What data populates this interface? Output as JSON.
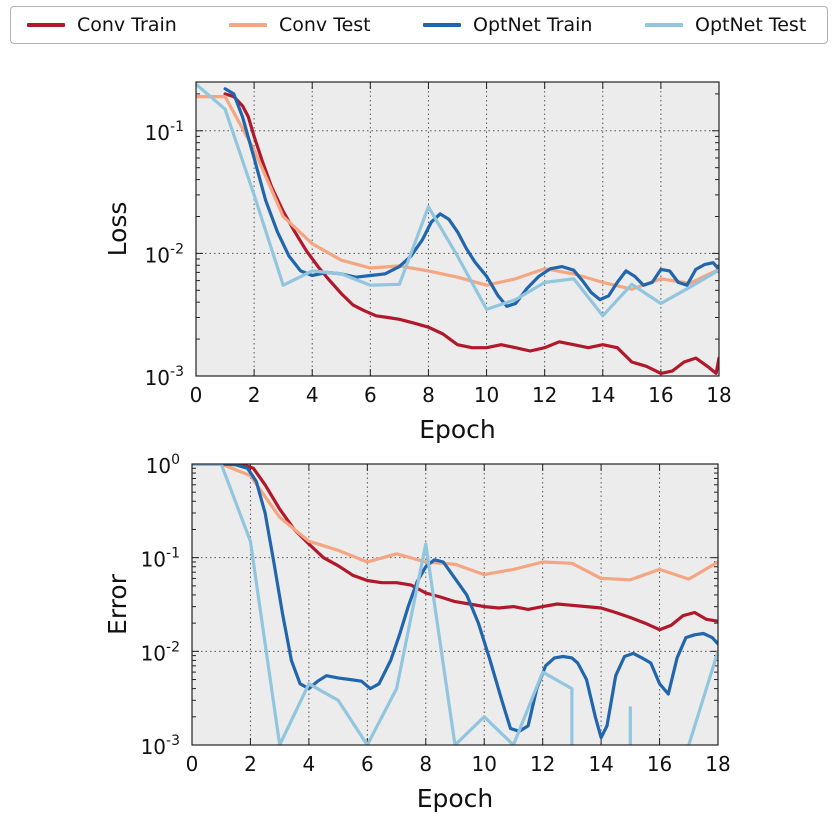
{
  "legend": {
    "items": [
      {
        "label": "Conv Train",
        "color": "#b2182b"
      },
      {
        "label": "Conv Test",
        "color": "#f4a582"
      },
      {
        "label": "OptNet Train",
        "color": "#2166ac"
      },
      {
        "label": "OptNet Test",
        "color": "#92c5de"
      }
    ]
  },
  "chart_data": [
    {
      "type": "line",
      "title": "",
      "xlabel": "Epoch",
      "ylabel": "Loss",
      "xlim": [
        0,
        18
      ],
      "ylim": [
        0.001,
        0.25
      ],
      "yscale": "log",
      "grid": true,
      "xticks": [
        "0",
        "2",
        "4",
        "6",
        "8",
        "10",
        "12",
        "14",
        "16",
        "18"
      ],
      "yticks": [
        {
          "value": 0.1,
          "base": "10",
          "exp": "-1"
        },
        {
          "value": 0.01,
          "base": "10",
          "exp": "-2"
        },
        {
          "value": 0.001,
          "base": "10",
          "exp": "-3"
        }
      ],
      "series": [
        {
          "name": "Conv Train",
          "color": "#b2182b",
          "x": [
            1.0,
            1.3,
            1.6,
            1.8,
            2.0,
            2.3,
            2.6,
            3.0,
            3.4,
            3.8,
            4.2,
            4.6,
            5.0,
            5.4,
            5.8,
            6.2,
            6.6,
            7.0,
            7.5,
            8.0,
            8.5,
            9.0,
            9.5,
            10.0,
            10.5,
            11.0,
            11.5,
            12.0,
            12.5,
            13.0,
            13.5,
            14.0,
            14.5,
            15.0,
            15.5,
            16.0,
            16.4,
            16.8,
            17.2,
            17.6,
            17.9,
            18.0
          ],
          "y": [
            0.2,
            0.19,
            0.16,
            0.13,
            0.09,
            0.055,
            0.035,
            0.022,
            0.015,
            0.0105,
            0.0078,
            0.006,
            0.0047,
            0.0038,
            0.0034,
            0.0031,
            0.003,
            0.0029,
            0.0027,
            0.0025,
            0.0022,
            0.0018,
            0.0017,
            0.0017,
            0.0018,
            0.0017,
            0.0016,
            0.0017,
            0.0019,
            0.0018,
            0.0017,
            0.0018,
            0.0017,
            0.0013,
            0.0012,
            0.00105,
            0.0011,
            0.0013,
            0.0014,
            0.0012,
            0.00105,
            0.0014
          ]
        },
        {
          "name": "Conv Test",
          "color": "#f4a582",
          "x": [
            0,
            1,
            2,
            3,
            4,
            5,
            6,
            7,
            8,
            9,
            10,
            11,
            12,
            13,
            14,
            15,
            16,
            17,
            18
          ],
          "y": [
            0.19,
            0.19,
            0.07,
            0.02,
            0.012,
            0.0088,
            0.0076,
            0.0079,
            0.0072,
            0.0064,
            0.0055,
            0.0062,
            0.0075,
            0.0068,
            0.0058,
            0.0051,
            0.0062,
            0.0057,
            0.0074
          ]
        },
        {
          "name": "OptNet Train",
          "color": "#2166ac",
          "x": [
            1.0,
            1.3,
            1.6,
            2.0,
            2.4,
            2.8,
            3.2,
            3.6,
            4.0,
            4.5,
            5.0,
            5.5,
            6.0,
            6.5,
            7.0,
            7.4,
            7.8,
            8.1,
            8.4,
            8.7,
            9.0,
            9.3,
            9.6,
            10.0,
            10.4,
            10.7,
            11.0,
            11.4,
            11.8,
            12.2,
            12.6,
            13.0,
            13.3,
            13.6,
            13.9,
            14.2,
            14.5,
            14.8,
            15.1,
            15.4,
            15.7,
            16.0,
            16.3,
            16.6,
            16.9,
            17.2,
            17.5,
            17.8,
            18.0
          ],
          "y": [
            0.22,
            0.2,
            0.13,
            0.06,
            0.027,
            0.015,
            0.0095,
            0.0072,
            0.0066,
            0.007,
            0.0068,
            0.0064,
            0.0066,
            0.0068,
            0.0078,
            0.0095,
            0.013,
            0.018,
            0.021,
            0.019,
            0.015,
            0.011,
            0.0085,
            0.0065,
            0.0045,
            0.0037,
            0.0039,
            0.0052,
            0.0065,
            0.0075,
            0.0078,
            0.0073,
            0.006,
            0.0048,
            0.0042,
            0.0045,
            0.0058,
            0.0072,
            0.0065,
            0.0055,
            0.0058,
            0.0074,
            0.0072,
            0.0058,
            0.0055,
            0.0074,
            0.0081,
            0.0084,
            0.0074
          ]
        },
        {
          "name": "OptNet Test",
          "color": "#92c5de",
          "x": [
            0,
            1,
            2,
            3,
            4,
            5,
            6,
            7,
            8,
            9,
            10,
            11,
            12,
            13,
            14,
            15,
            16,
            17,
            18
          ],
          "y": [
            0.24,
            0.15,
            0.03,
            0.0055,
            0.0072,
            0.0068,
            0.0055,
            0.0056,
            0.024,
            0.0095,
            0.0035,
            0.0042,
            0.0058,
            0.0062,
            0.0031,
            0.0056,
            0.0039,
            0.0053,
            0.0073
          ]
        }
      ]
    },
    {
      "type": "line",
      "title": "",
      "xlabel": "Epoch",
      "ylabel": "Error",
      "xlim": [
        0,
        18
      ],
      "ylim": [
        0.001,
        1
      ],
      "yscale": "log",
      "grid": true,
      "xticks": [
        "0",
        "2",
        "4",
        "6",
        "8",
        "10",
        "12",
        "14",
        "16",
        "18"
      ],
      "yticks": [
        {
          "value": 1,
          "base": "10",
          "exp": "0"
        },
        {
          "value": 0.1,
          "base": "10",
          "exp": "-1"
        },
        {
          "value": 0.01,
          "base": "10",
          "exp": "-2"
        },
        {
          "value": 0.001,
          "base": "10",
          "exp": "-3"
        }
      ],
      "series": [
        {
          "name": "Conv Train",
          "color": "#b2182b",
          "x": [
            0,
            1.0,
            1.5,
            1.8,
            2.1,
            2.5,
            3.0,
            3.5,
            4.0,
            4.5,
            5.0,
            5.5,
            6.0,
            6.5,
            7.0,
            7.5,
            8.0,
            8.5,
            9.0,
            9.5,
            10.0,
            10.5,
            11.0,
            11.5,
            12.0,
            12.5,
            13.0,
            13.5,
            14.0,
            14.5,
            15.0,
            15.5,
            16.0,
            16.4,
            16.8,
            17.2,
            17.6,
            18.0
          ],
          "y": [
            1,
            1,
            0.99,
            0.97,
            0.9,
            0.6,
            0.33,
            0.2,
            0.14,
            0.1,
            0.082,
            0.065,
            0.057,
            0.054,
            0.054,
            0.051,
            0.042,
            0.038,
            0.034,
            0.032,
            0.03,
            0.029,
            0.03,
            0.028,
            0.03,
            0.032,
            0.031,
            0.03,
            0.029,
            0.026,
            0.023,
            0.02,
            0.017,
            0.019,
            0.024,
            0.026,
            0.022,
            0.021
          ]
        },
        {
          "name": "Conv Test",
          "color": "#f4a582",
          "x": [
            0,
            1,
            2,
            3,
            4,
            5,
            6,
            7,
            8,
            9,
            10,
            11,
            12,
            13,
            14,
            15,
            16,
            17,
            18
          ],
          "y": [
            1,
            1,
            0.75,
            0.27,
            0.15,
            0.12,
            0.09,
            0.11,
            0.09,
            0.085,
            0.066,
            0.075,
            0.09,
            0.087,
            0.06,
            0.058,
            0.075,
            0.059,
            0.09
          ]
        },
        {
          "name": "OptNet Train",
          "color": "#2166ac",
          "x": [
            0,
            1.0,
            1.5,
            1.9,
            2.2,
            2.5,
            2.8,
            3.1,
            3.4,
            3.7,
            4.0,
            4.3,
            4.6,
            5.0,
            5.4,
            5.8,
            6.1,
            6.4,
            6.8,
            7.1,
            7.4,
            7.7,
            8.0,
            8.3,
            8.6,
            9.0,
            9.4,
            9.8,
            10.2,
            10.6,
            10.9,
            11.2,
            11.5,
            11.8,
            12.1,
            12.4,
            12.7,
            13.0,
            13.2,
            13.5,
            13.8,
            14.0,
            14.2,
            14.5,
            14.8,
            15.1,
            15.4,
            15.7,
            16.0,
            16.3,
            16.6,
            16.9,
            17.2,
            17.5,
            17.8,
            18.0
          ],
          "y": [
            1,
            1,
            0.98,
            0.9,
            0.65,
            0.3,
            0.09,
            0.025,
            0.008,
            0.0045,
            0.004,
            0.0048,
            0.0055,
            0.0052,
            0.005,
            0.0048,
            0.004,
            0.0045,
            0.008,
            0.015,
            0.03,
            0.055,
            0.08,
            0.095,
            0.09,
            0.06,
            0.04,
            0.02,
            0.008,
            0.003,
            0.0015,
            0.0014,
            0.0016,
            0.004,
            0.007,
            0.0085,
            0.0088,
            0.0085,
            0.0075,
            0.005,
            0.002,
            0.0012,
            0.0016,
            0.0055,
            0.0088,
            0.0095,
            0.0085,
            0.0075,
            0.0045,
            0.0035,
            0.0085,
            0.014,
            0.015,
            0.0155,
            0.014,
            0.012
          ]
        },
        {
          "name": "OptNet Test",
          "color": "#92c5de",
          "segments": [
            {
              "x": [
                0,
                1,
                2,
                3,
                4,
                5,
                6,
                7,
                8,
                9,
                10,
                11,
                12,
                13,
                13.0
              ],
              "y": [
                1,
                1,
                0.15,
                0.001,
                0.0045,
                0.003,
                0.001,
                0.004,
                0.14,
                0.001,
                0.002,
                0.001,
                0.006,
                0.004,
                0.001
              ]
            },
            {
              "x": [
                15.0,
                15.0
              ],
              "y": [
                0.0025,
                0.001
              ]
            },
            {
              "x": [
                17.0,
                18.0
              ],
              "y": [
                0.001,
                0.01
              ]
            }
          ]
        }
      ]
    }
  ]
}
